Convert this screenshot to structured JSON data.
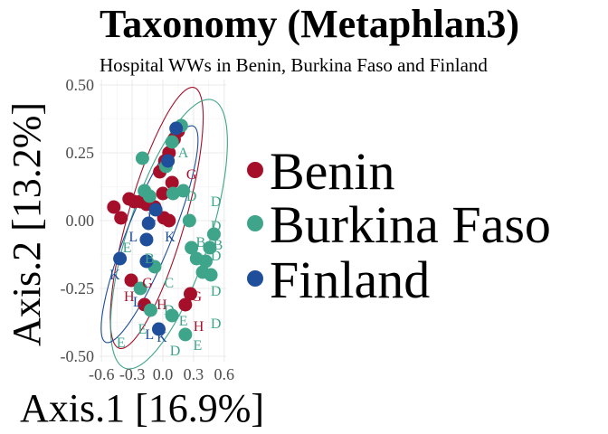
{
  "chart_data": {
    "type": "scatter",
    "title": "Taxonomy (Metaphlan3)",
    "subtitle": "Hospital WWs in Benin, Burkina Faso and Finland",
    "xlabel": "Axis.1   [16.9%]",
    "ylabel": "Axis.2   [13.2%]",
    "xlim": [
      -0.62,
      0.62
    ],
    "ylim": [
      -0.52,
      0.52
    ],
    "x_ticks": [
      -0.6,
      -0.3,
      0.0,
      0.3,
      0.6
    ],
    "x_tick_labels": [
      "-0.6",
      "-0.3",
      "0.0",
      "0.3",
      "0.6"
    ],
    "y_ticks": [
      -0.5,
      -0.25,
      0.0,
      0.25,
      0.5
    ],
    "y_tick_labels": [
      "-0.50",
      "-0.25",
      "0.00",
      "0.25",
      "0.50"
    ],
    "grid": true,
    "legend_position": "right",
    "colors": {
      "Benin": "#a50f2a",
      "Burkina Faso": "#3ea58a",
      "Finland": "#1f4e9a"
    },
    "series": [
      {
        "name": "Benin",
        "points": [
          {
            "x": -0.48,
            "y": 0.05
          },
          {
            "x": -0.41,
            "y": 0.01
          },
          {
            "x": -0.33,
            "y": 0.08
          },
          {
            "x": -0.28,
            "y": 0.07
          },
          {
            "x": -0.22,
            "y": 0.07
          },
          {
            "x": -0.16,
            "y": 0.06
          },
          {
            "x": -0.08,
            "y": 0.05
          },
          {
            "x": -0.03,
            "y": 0.18
          },
          {
            "x": 0.02,
            "y": 0.22
          },
          {
            "x": 0.06,
            "y": 0.25
          },
          {
            "x": 0.11,
            "y": 0.3
          },
          {
            "x": 0.15,
            "y": 0.33
          },
          {
            "x": 0.09,
            "y": 0.14
          },
          {
            "x": 0.01,
            "y": 0.01
          },
          {
            "x": 0.06,
            "y": 0.0
          },
          {
            "x": -0.31,
            "y": -0.22
          },
          {
            "x": -0.18,
            "y": -0.31
          },
          {
            "x": 0.27,
            "y": -0.27
          },
          {
            "x": 0.22,
            "y": -0.31
          },
          {
            "x": 0.0,
            "y": 0.1
          }
        ],
        "labels": [
          {
            "text": "G",
            "x": 0.28,
            "y": 0.17
          },
          {
            "text": "H",
            "x": -0.33,
            "y": -0.28
          },
          {
            "text": "H",
            "x": -0.01,
            "y": -0.31
          },
          {
            "text": "G",
            "x": -0.15,
            "y": -0.23
          },
          {
            "text": "G",
            "x": 0.33,
            "y": -0.28
          },
          {
            "text": "H",
            "x": 0.35,
            "y": -0.39
          }
        ]
      },
      {
        "name": "Burkina Faso",
        "points": [
          {
            "x": 0.18,
            "y": 0.35
          },
          {
            "x": 0.09,
            "y": 0.29
          },
          {
            "x": 0.03,
            "y": 0.2
          },
          {
            "x": -0.2,
            "y": 0.23
          },
          {
            "x": -0.18,
            "y": 0.11
          },
          {
            "x": -0.13,
            "y": 0.09
          },
          {
            "x": 0.2,
            "y": 0.11
          },
          {
            "x": 0.26,
            "y": 0.0
          },
          {
            "x": 0.5,
            "y": -0.05
          },
          {
            "x": 0.46,
            "y": -0.1
          },
          {
            "x": 0.42,
            "y": -0.15
          },
          {
            "x": 0.39,
            "y": -0.19
          },
          {
            "x": 0.47,
            "y": -0.2
          },
          {
            "x": 0.33,
            "y": -0.14
          },
          {
            "x": 0.28,
            "y": -0.1
          },
          {
            "x": -0.08,
            "y": -0.17
          },
          {
            "x": -0.22,
            "y": -0.25
          },
          {
            "x": -0.12,
            "y": -0.33
          },
          {
            "x": 0.09,
            "y": -0.35
          },
          {
            "x": 0.22,
            "y": -0.42
          },
          {
            "x": 0.1,
            "y": 0.1
          }
        ],
        "labels": [
          {
            "text": "A",
            "x": 0.2,
            "y": 0.25
          },
          {
            "text": "D",
            "x": 0.28,
            "y": 0.09
          },
          {
            "text": "D",
            "x": 0.52,
            "y": 0.07
          },
          {
            "text": "D",
            "x": 0.52,
            "y": -0.02
          },
          {
            "text": "B",
            "x": 0.54,
            "y": -0.09
          },
          {
            "text": "D",
            "x": 0.52,
            "y": -0.13
          },
          {
            "text": "D",
            "x": 0.52,
            "y": -0.26
          },
          {
            "text": "D",
            "x": 0.52,
            "y": -0.38
          },
          {
            "text": "B",
            "x": 0.37,
            "y": -0.08
          },
          {
            "text": "E",
            "x": -0.35,
            "y": -0.1
          },
          {
            "text": "B",
            "x": -0.13,
            "y": -0.14
          },
          {
            "text": "C",
            "x": 0.06,
            "y": -0.23
          },
          {
            "text": "E",
            "x": -0.41,
            "y": -0.45
          },
          {
            "text": "E",
            "x": -0.2,
            "y": -0.4
          },
          {
            "text": "D",
            "x": 0.12,
            "y": -0.48
          },
          {
            "text": "E",
            "x": 0.34,
            "y": -0.46
          },
          {
            "text": "E",
            "x": 0.2,
            "y": -0.37
          },
          {
            "text": "D",
            "x": 0.06,
            "y": -0.33
          }
        ]
      },
      {
        "name": "Finland",
        "points": [
          {
            "x": 0.13,
            "y": 0.34
          },
          {
            "x": 0.05,
            "y": 0.22
          },
          {
            "x": -0.14,
            "y": -0.01
          },
          {
            "x": -0.16,
            "y": -0.07
          },
          {
            "x": -0.07,
            "y": 0.04
          },
          {
            "x": -0.42,
            "y": -0.14
          },
          {
            "x": -0.16,
            "y": -0.15
          },
          {
            "x": -0.04,
            "y": -0.4
          }
        ],
        "labels": [
          {
            "text": "L",
            "x": -0.29,
            "y": -0.06
          },
          {
            "text": "K",
            "x": 0.07,
            "y": -0.06
          },
          {
            "text": "K",
            "x": -0.47,
            "y": -0.2
          },
          {
            "text": "L",
            "x": -0.25,
            "y": -0.3
          },
          {
            "text": "K",
            "x": -0.01,
            "y": -0.43
          },
          {
            "text": "L",
            "x": -0.13,
            "y": -0.42
          },
          {
            "text": "L",
            "x": -0.11,
            "y": 0.01
          }
        ]
      }
    ],
    "ellipses": [
      {
        "series": "Benin",
        "cx": -0.06,
        "cy": 0.01,
        "rx": 0.28,
        "ry": 0.5,
        "rot": 16
      },
      {
        "series": "Burkina Faso",
        "cx": 0.06,
        "cy": -0.05,
        "rx": 0.4,
        "ry": 0.52,
        "rot": 18
      },
      {
        "series": "Finland",
        "cx": -0.13,
        "cy": -0.05,
        "rx": 0.22,
        "ry": 0.43,
        "rot": 22
      }
    ]
  }
}
